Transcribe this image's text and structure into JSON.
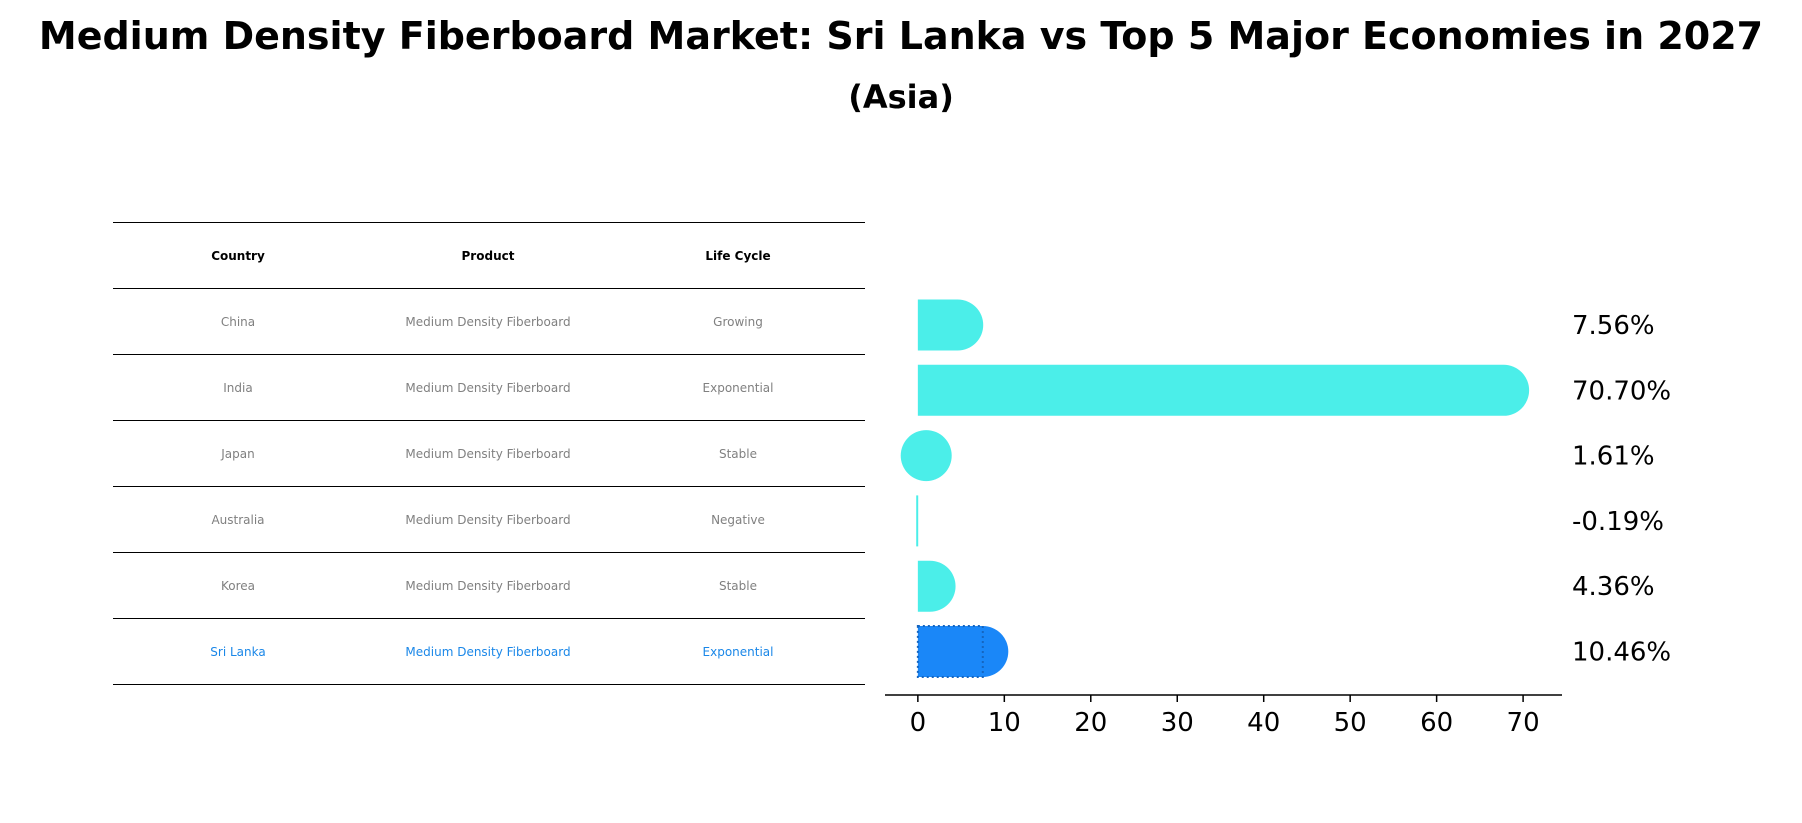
{
  "title": "Medium Density Fiberboard Market: Sri Lanka vs Top 5 Major Economies in 2027",
  "subtitle": "(Asia)",
  "table": {
    "headers": [
      "Country",
      "Product",
      "Life Cycle"
    ],
    "rows": [
      [
        "China",
        "Medium Density Fiberboard",
        "Growing"
      ],
      [
        "India",
        "Medium Density Fiberboard",
        "Exponential"
      ],
      [
        "Japan",
        "Medium Density Fiberboard",
        "Stable"
      ],
      [
        "Australia",
        "Medium Density Fiberboard",
        "Negative"
      ],
      [
        "Korea",
        "Medium Density Fiberboard",
        "Stable"
      ],
      [
        "Sri Lanka",
        "Medium Density Fiberboard",
        "Exponential"
      ]
    ]
  },
  "chart_data": {
    "type": "bar",
    "orientation": "horizontal",
    "title": "Medium Density Fiberboard Market: Sri Lanka vs Top 5 Major Economies in 2027",
    "subtitle": "(Asia)",
    "categories": [
      "China",
      "India",
      "Japan",
      "Australia",
      "Korea",
      "Sri Lanka"
    ],
    "values": [
      7.56,
      70.7,
      1.61,
      -0.19,
      4.36,
      10.46
    ],
    "value_labels": [
      "7.56%",
      "70.70%",
      "1.61%",
      "-0.19%",
      "4.36%",
      "10.46%"
    ],
    "highlight": "Sri Lanka",
    "xlim": [
      -3.8,
      74.5
    ],
    "xticks": [
      0,
      10,
      20,
      30,
      40,
      50,
      60,
      70
    ],
    "xlabel": "",
    "ylabel": "",
    "colors": {
      "bar": "#4beee9",
      "highlight": "#1a87f8"
    }
  }
}
